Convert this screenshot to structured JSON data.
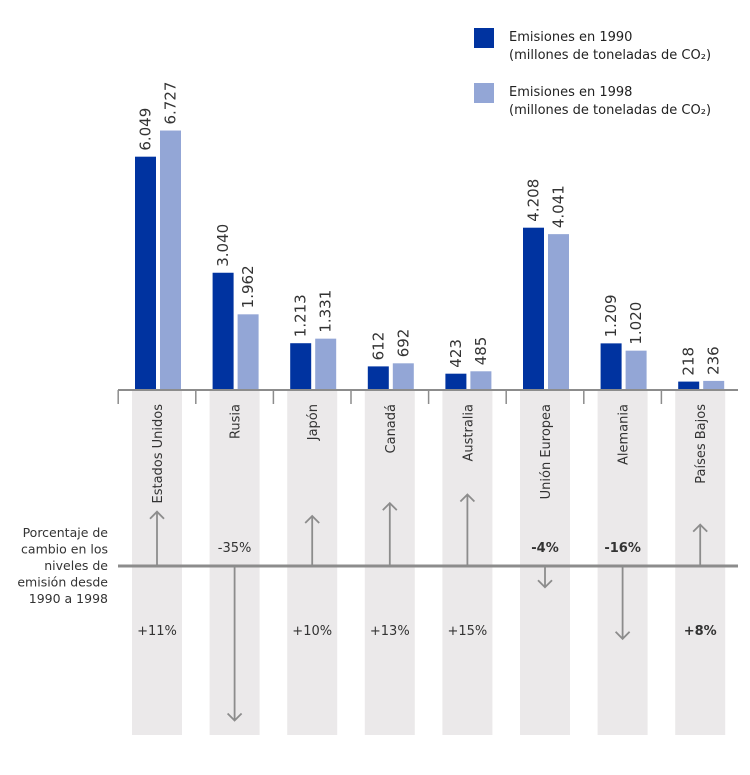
{
  "chart_data": {
    "type": "bar",
    "categories": [
      "Estados Unidos",
      "Rusia",
      "Japón",
      "Canadá",
      "Australia",
      "Unión Europea",
      "Alemania",
      "Países Bajos"
    ],
    "series": [
      {
        "name": "Emisiones en 1990 (millones de toneladas de CO2)",
        "legend_lines": [
          "Emisiones en 1990",
          "(millones de toneladas de CO₂)"
        ],
        "color": "#0033a0",
        "values": [
          6049,
          3040,
          1213,
          612,
          423,
          4208,
          1209,
          218
        ],
        "labels": [
          "6.049",
          "3.040",
          "1.213",
          "612",
          "423",
          "4.208",
          "1.209",
          "218"
        ]
      },
      {
        "name": "Emisiones en 1998 (millones de toneladas de CO2)",
        "legend_lines": [
          "Emisiones en 1998",
          "(millones de toneladas de CO₂)"
        ],
        "color": "#93a6d6",
        "values": [
          6727,
          1962,
          1331,
          692,
          485,
          4041,
          1020,
          236
        ],
        "labels": [
          "6.727",
          "1.962",
          "1.331",
          "692",
          "485",
          "4.041",
          "1.020",
          "236"
        ]
      }
    ],
    "change": {
      "label_lines": [
        "Porcentaje de",
        "cambio en los",
        "niveles de",
        "emisión desde",
        "1990 a 1998"
      ],
      "values": [
        11,
        -35,
        10,
        13,
        15,
        -4,
        -16,
        8
      ],
      "labels": [
        "+11%",
        "-35%",
        "+10%",
        "+13%",
        "+15%",
        "-4%",
        "-16%",
        "+8%"
      ],
      "bold": [
        false,
        false,
        false,
        false,
        false,
        true,
        true,
        true
      ]
    },
    "ylim": [
      0,
      7000
    ],
    "grid": false,
    "legend_position": "top-right",
    "colors": {
      "band": "#ebe9ea",
      "axis": "#8c8c8c",
      "arrow": "#8c8c8c"
    }
  }
}
